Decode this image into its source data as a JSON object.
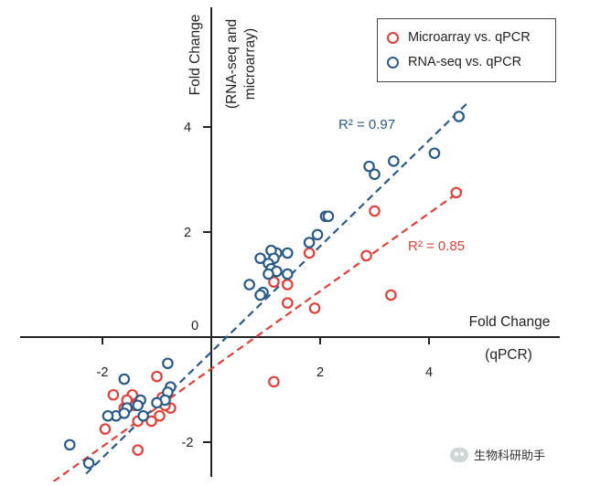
{
  "chart_data": {
    "type": "scatter",
    "y_axis_title_line1": "Fold Change",
    "y_axis_title_line2": "(RNA-seq and",
    "y_axis_title_line3": "microarray)",
    "x_axis_title_line1": "Fold Change",
    "x_axis_title_line2": "(qPCR)",
    "xlim": [
      -2.9,
      4.9
    ],
    "ylim": [
      -2.8,
      5.0
    ],
    "x_ticks": [
      -2,
      2,
      4
    ],
    "y_ticks": [
      4,
      2,
      -2
    ],
    "origin_label": "0",
    "grid": false,
    "legend_position": "top-right",
    "colors": {
      "microarray": "#e0403a",
      "rnaseq": "#2a5a86"
    },
    "series": [
      {
        "name": "Microarray vs. qPCR",
        "color": "#e0403a",
        "fit_line": {
          "x0": -2.9,
          "y0": -2.75,
          "x1": 4.6,
          "y1": 2.8
        },
        "r2_label": "R² = 0.85",
        "points": [
          [
            4.5,
            2.75
          ],
          [
            3.0,
            2.4
          ],
          [
            2.85,
            1.55
          ],
          [
            3.3,
            0.8
          ],
          [
            1.8,
            1.6
          ],
          [
            1.9,
            0.55
          ],
          [
            1.4,
            0.65
          ],
          [
            1.1,
            1.2
          ],
          [
            1.15,
            1.05
          ],
          [
            1.4,
            1.0
          ],
          [
            1.15,
            -0.85
          ],
          [
            -1.8,
            -1.1
          ],
          [
            -1.6,
            -1.35
          ],
          [
            -1.45,
            -1.1
          ],
          [
            -1.4,
            -1.3
          ],
          [
            -1.35,
            -1.6
          ],
          [
            -1.1,
            -1.6
          ],
          [
            -0.95,
            -1.5
          ],
          [
            -0.9,
            -1.15
          ],
          [
            -0.75,
            -1.35
          ],
          [
            -1.0,
            -0.75
          ],
          [
            -1.95,
            -1.75
          ],
          [
            -1.35,
            -2.15
          ],
          [
            -1.55,
            -1.2
          ],
          [
            -0.85,
            -1.3
          ]
        ]
      },
      {
        "name": "RNA-seq vs. qPCR",
        "color": "#2a5a86",
        "fit_line": {
          "x0": -2.3,
          "y0": -2.6,
          "x1": 4.7,
          "y1": 4.45
        },
        "r2_label": "R² = 0.97",
        "points": [
          [
            4.55,
            4.2
          ],
          [
            4.1,
            3.5
          ],
          [
            3.35,
            3.35
          ],
          [
            2.9,
            3.25
          ],
          [
            3.0,
            3.1
          ],
          [
            2.1,
            2.3
          ],
          [
            2.15,
            2.3
          ],
          [
            1.95,
            1.95
          ],
          [
            1.8,
            1.8
          ],
          [
            1.4,
            1.6
          ],
          [
            1.2,
            1.6
          ],
          [
            1.1,
            1.65
          ],
          [
            1.15,
            1.5
          ],
          [
            0.9,
            1.5
          ],
          [
            1.05,
            1.4
          ],
          [
            1.1,
            1.3
          ],
          [
            1.2,
            1.25
          ],
          [
            1.4,
            1.2
          ],
          [
            0.7,
            1.0
          ],
          [
            0.95,
            0.85
          ],
          [
            0.9,
            0.8
          ],
          [
            1.05,
            1.2
          ],
          [
            -0.8,
            -0.5
          ],
          [
            -1.6,
            -0.8
          ],
          [
            -0.75,
            -0.95
          ],
          [
            -0.8,
            -1.05
          ],
          [
            -0.85,
            -1.2
          ],
          [
            -1.0,
            -1.25
          ],
          [
            -1.3,
            -1.2
          ],
          [
            -1.35,
            -1.3
          ],
          [
            -1.55,
            -1.35
          ],
          [
            -1.75,
            -1.5
          ],
          [
            -1.9,
            -1.5
          ],
          [
            -1.25,
            -1.5
          ],
          [
            -1.6,
            -1.45
          ],
          [
            -2.6,
            -2.05
          ],
          [
            -2.25,
            -2.4
          ]
        ]
      }
    ]
  },
  "watermark": {
    "text": "生物科研助手",
    "icon": "wechat-icon"
  }
}
